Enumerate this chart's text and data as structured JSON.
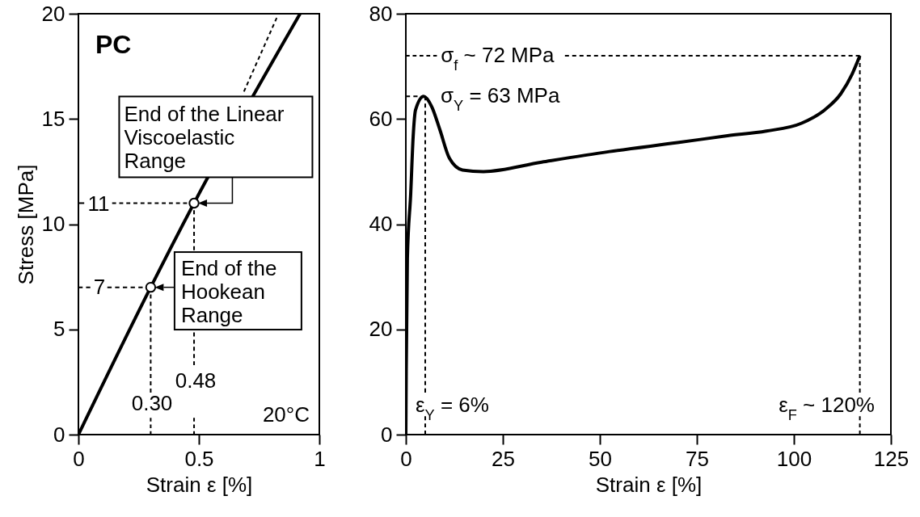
{
  "chart_data": [
    {
      "type": "line",
      "xlabel": "Strain ε [%]",
      "ylabel": "Stress [MPa]",
      "xlim": [
        0,
        1
      ],
      "xticks": [
        0,
        0.5,
        1
      ],
      "ylim": [
        0,
        20
      ],
      "yticks": [
        0,
        5,
        10,
        15,
        20
      ],
      "series": [
        {
          "color": "#000000",
          "line_style": "solid",
          "x": [
            0,
            0.3,
            0.48,
            0.92
          ],
          "values": [
            0,
            7,
            11,
            20
          ]
        },
        {
          "color": "#000000",
          "line_style": "dashed",
          "x": [
            0.687,
            0.823
          ],
          "values": [
            16.3,
            19.8
          ]
        },
        {
          "color": "#000000",
          "line_style": "dashed",
          "x": [
            0,
            0.03
          ],
          "values": [
            11,
            11
          ]
        },
        {
          "color": "#000000",
          "line_style": "dashed",
          "x": [
            0.14,
            0.48
          ],
          "values": [
            11,
            11
          ]
        },
        {
          "color": "#000000",
          "line_style": "dashed",
          "x": [
            0,
            0.05
          ],
          "values": [
            7,
            7
          ]
        },
        {
          "color": "#000000",
          "line_style": "dashed",
          "x": [
            0.12,
            0.3
          ],
          "values": [
            7,
            7
          ]
        },
        {
          "color": "#000000",
          "line_style": "dashed",
          "x": [
            0.48,
            0.48
          ],
          "values": [
            11,
            3.3
          ]
        },
        {
          "color": "#000000",
          "line_style": "dashed",
          "x": [
            0.48,
            0.48
          ],
          "values": [
            0.8,
            0
          ]
        },
        {
          "color": "#000000",
          "line_style": "dashed",
          "x": [
            0.3,
            0.3
          ],
          "values": [
            7,
            2
          ]
        },
        {
          "color": "#000000",
          "line_style": "dashed",
          "x": [
            0.3,
            0.3
          ],
          "values": [
            0.8,
            0
          ]
        },
        {
          "type": "scatter",
          "marker": "circle",
          "color": "#000000",
          "x": [
            0.3,
            0.48
          ],
          "values": [
            7,
            11
          ]
        }
      ],
      "annotations": [
        "PC",
        "20°C",
        {
          "text": "End of the Linear\nViscoelastic\nRange",
          "x": 0.48,
          "y": 11
        },
        {
          "text": "End of the\nHookean\nRange",
          "x": 0.3,
          "y": 7
        },
        "11",
        "7",
        "0.30",
        "0.48"
      ]
    },
    {
      "type": "line",
      "xlabel": "Strain ε [%]",
      "xlim": [
        0,
        125
      ],
      "xticks": [
        0,
        25,
        50,
        75,
        100,
        125
      ],
      "ylim": [
        0,
        80
      ],
      "yticks": [
        0,
        20,
        40,
        60,
        80
      ],
      "series": [
        {
          "color": "#000000",
          "line_style": "solid",
          "x": [
            0,
            0.1,
            0.4,
            1.25,
            1.9,
            2.5,
            4.6,
            6.7,
            8.75,
            11.25,
            14.6,
            20,
            35,
            52.5,
            70,
            82.9,
            92.9,
            102,
            107.9,
            112.1,
            115,
            117
          ],
          "values": [
            0,
            12,
            33.5,
            45.7,
            56.8,
            61.7,
            64.3,
            62.3,
            58,
            52.5,
            50.3,
            50,
            51.8,
            53.8,
            55.5,
            56.8,
            57.7,
            59.2,
            61.7,
            64.8,
            68.5,
            72
          ]
        },
        {
          "color": "#000000",
          "line_style": "dashed",
          "x": [
            0,
            8
          ],
          "values": [
            72,
            72
          ]
        },
        {
          "color": "#000000",
          "line_style": "dashed",
          "x": [
            41,
            117
          ],
          "values": [
            72,
            72
          ]
        },
        {
          "color": "#000000",
          "line_style": "dashed",
          "x": [
            0,
            5
          ],
          "values": [
            64.3,
            64.3
          ]
        },
        {
          "color": "#000000",
          "line_style": "dashed",
          "x": [
            5,
            5
          ],
          "values": [
            64.3,
            8
          ]
        },
        {
          "color": "#000000",
          "line_style": "dashed",
          "x": [
            5,
            5
          ],
          "values": [
            3.5,
            0
          ]
        },
        {
          "color": "#000000",
          "line_style": "dashed",
          "x": [
            117,
            117
          ],
          "values": [
            72,
            8
          ]
        },
        {
          "color": "#000000",
          "line_style": "dashed",
          "x": [
            117,
            117
          ],
          "values": [
            3.5,
            0
          ]
        }
      ],
      "annotations": [
        {
          "text": "σ$_{f}$ ~ 72 MPa",
          "x": 9,
          "y": 72
        },
        "σ$_{Y}$ = 63 MPa",
        "ε$_{Y}$ = 6%",
        "ε$_{F}$ ~ 120%"
      ]
    }
  ]
}
